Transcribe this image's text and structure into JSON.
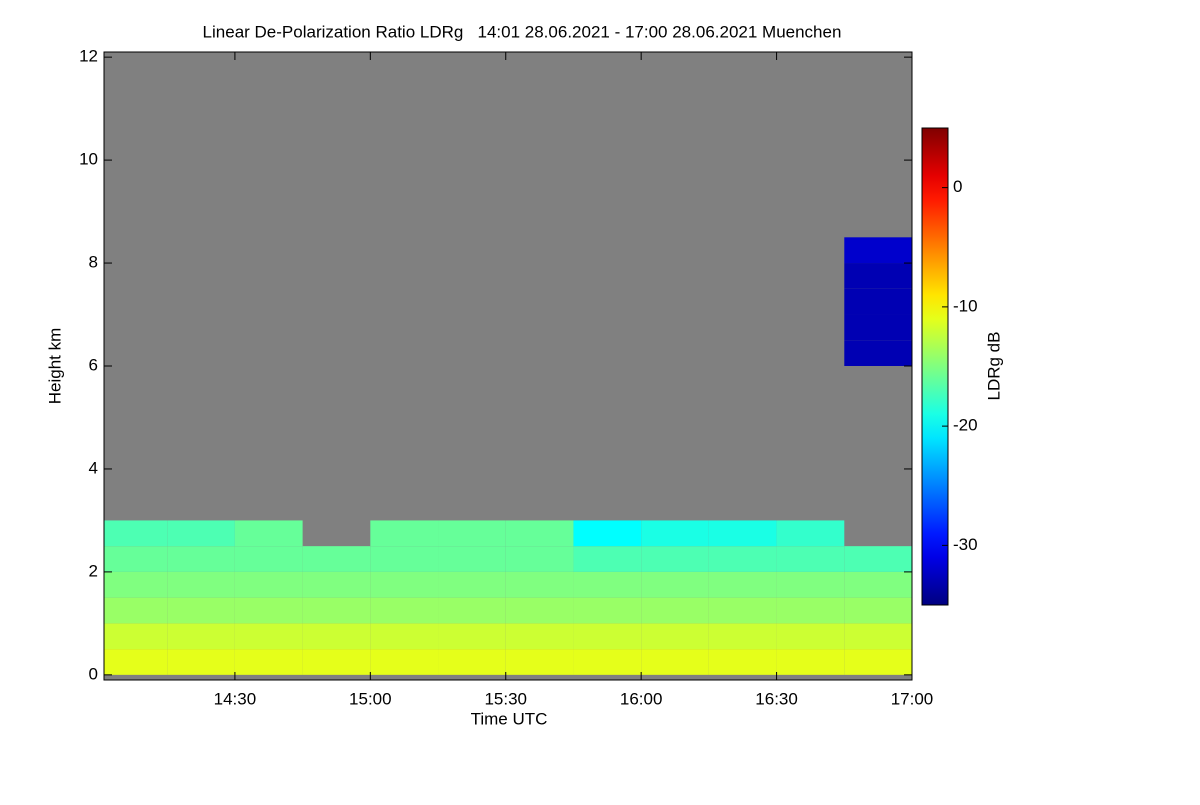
{
  "chart_data": {
    "type": "heatmap",
    "title": "Linear De-Polarization Ratio LDRg   14:01 28.06.2021 - 17:00 28.06.2021 Muenchen",
    "x_label": "Time UTC",
    "y_label": "Height km",
    "colorbar_label": "LDRg dB",
    "xlim": [
      "14:01",
      "17:00"
    ],
    "xticks": [
      "14:30",
      "15:00",
      "15:30",
      "16:00",
      "16:30",
      "17:00"
    ],
    "ylim": [
      -0.1,
      12.1
    ],
    "yticks": [
      0,
      2,
      4,
      6,
      8,
      10,
      12
    ],
    "clim": [
      -35,
      5
    ],
    "cticks": [
      0,
      -10,
      -20,
      -30
    ],
    "colormap": "jet",
    "nodata_color": "#808080",
    "x_edges": [
      "14:01",
      "14:15",
      "14:30",
      "14:45",
      "15:00",
      "15:15",
      "15:30",
      "15:45",
      "16:00",
      "16:15",
      "16:30",
      "16:45",
      "17:00"
    ],
    "y_edges": [
      0,
      0.5,
      1,
      1.5,
      2,
      2.5,
      3,
      3.5,
      4,
      4.5,
      5,
      5.5,
      6,
      6.5,
      7,
      7.5,
      8,
      8.5
    ],
    "z": [
      [
        -11,
        -11,
        -11,
        -11,
        -11,
        -11,
        -11,
        -11,
        -11,
        -11,
        -11,
        -11
      ],
      [
        -12,
        -12,
        -12,
        -12,
        -12,
        -12,
        -12,
        -12,
        -12,
        -12,
        -12,
        -12
      ],
      [
        -14,
        -14,
        -14,
        -14,
        -14,
        -14,
        -14,
        -14,
        -14,
        -14,
        -14,
        -14
      ],
      [
        -15,
        -15,
        -15,
        -15,
        -15,
        -15,
        -15,
        -15,
        -15,
        -15,
        -15,
        -15
      ],
      [
        -16,
        -16,
        -16,
        -16,
        -16,
        -16,
        -16,
        -17,
        -17,
        -17,
        -17,
        -17
      ],
      [
        -17,
        -17,
        -16,
        null,
        -16,
        -16,
        -16,
        -20,
        -19,
        -19,
        -18,
        null
      ],
      [
        null,
        null,
        null,
        null,
        null,
        null,
        null,
        null,
        null,
        null,
        null,
        null
      ],
      [
        null,
        null,
        null,
        null,
        null,
        null,
        null,
        null,
        null,
        null,
        null,
        null
      ],
      [
        null,
        null,
        null,
        null,
        null,
        null,
        null,
        null,
        null,
        null,
        null,
        null
      ],
      [
        null,
        null,
        null,
        null,
        null,
        null,
        null,
        null,
        null,
        null,
        null,
        null
      ],
      [
        null,
        null,
        null,
        null,
        null,
        null,
        null,
        null,
        null,
        null,
        null,
        null
      ],
      [
        null,
        null,
        null,
        null,
        null,
        null,
        null,
        null,
        null,
        null,
        null,
        null
      ],
      [
        null,
        null,
        null,
        null,
        null,
        null,
        null,
        null,
        null,
        null,
        null,
        -33
      ],
      [
        null,
        null,
        null,
        null,
        null,
        null,
        null,
        null,
        null,
        null,
        null,
        -33
      ],
      [
        null,
        null,
        null,
        null,
        null,
        null,
        null,
        null,
        null,
        null,
        null,
        -33
      ],
      [
        null,
        null,
        null,
        null,
        null,
        null,
        null,
        null,
        null,
        null,
        null,
        -33
      ],
      [
        null,
        null,
        null,
        null,
        null,
        null,
        null,
        null,
        null,
        null,
        null,
        -32
      ]
    ]
  }
}
